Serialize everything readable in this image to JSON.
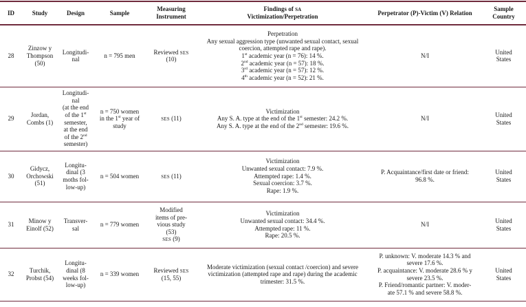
{
  "colors": {
    "rule": "#6f2a3c",
    "text": "#1a1a1a"
  },
  "table": {
    "columns": [
      {
        "label": "ID"
      },
      {
        "label": "Study"
      },
      {
        "label": "Design"
      },
      {
        "label": "Sample"
      },
      {
        "label": "Measuring\nInstrument"
      },
      {
        "label": "Findings of [SA]\nVictimization/Perpetration"
      },
      {
        "label": "Perpetrator (P)-Victim (V) Relation"
      },
      {
        "label": "Sample\nCountry"
      }
    ],
    "rows": [
      {
        "id": "28",
        "study": "Zinzow y\nThompson\n(50)",
        "design": "Longitudi-\nnal",
        "sample": "n = 795 men",
        "instrument": "Reviewed [SES]\n(10)",
        "findings": "Perpetration\nAny sexual aggression type (unwanted sexual contact, sexual coercion, attempted rape and rape).\n1{st} academic year (n = 76): 14 %.\n2{nd} academic year (n = 57): 18 %.\n3{rd} academic year (n = 57): 12 %.\n4{th} academic year (n = 52): 21 %.",
        "relation": "N/I",
        "country": "United\nStates"
      },
      {
        "id": "29",
        "study": "Jordan,\nCombs (1)",
        "design": "Longitudi-\nnal\n(at the end\nof the 1{st}\nsemester,\nat the end\nof the 2{nd}\nsemester)",
        "sample": "n = 750 women\nin the 1{st} year of\nstudy",
        "instrument": "[SES] (11)",
        "findings": "Victimization\nAny S. A. type at the end of the 1{st} semester: 24.2 %.\nAny S. A. type at the end of the 2{nd} semester: 19.6 %.",
        "relation": "N/I",
        "country": "United\nStates"
      },
      {
        "id": "30",
        "study": "Gidycz,\nOrchowski\n(51)",
        "design": "Longitu-\ndinal (3\nmoths fol-\nlow-up)",
        "sample": "n = 504 women",
        "instrument": "[SES] (11)",
        "findings": "Victimization\nUnwanted sexual contact: 7.9 %.\nAttempted rape: 1.4 %.\nSexual coercion: 3.7 %.\nRape: 1.9 %.",
        "relation": "P. Acquaintance/first date or friend:\n96.8 %.",
        "country": "United\nStates"
      },
      {
        "id": "31",
        "study": "Minow y\nEinolf (52)",
        "design": "Transver-\nsal",
        "sample": "n = 779 women",
        "instrument": "Modified\nitems of pre-\nvious study\n(53)\n[SES] (9)",
        "findings": "Victimization\nUnwanted sexual contact: 34.4 %.\nAttempted rape: 11 %.\nRape: 20.5 %.",
        "relation": "N/I",
        "country": "United\nStates"
      },
      {
        "id": "32",
        "study": "Turchik,\nProbst (54)",
        "design": "Longitu-\ndinal (8\nweeks fol-\nlow-up)",
        "sample": "n = 339 women",
        "instrument": "Reviewed [SES]\n(15, 55)",
        "findings": "Moderate victimization (sexual contact /coercion) and severe victimization (attempted rape and rape) during the academic trimester: 31.5 %.",
        "relation": "P. unknown: V. moderate 14.3 % and\nsevere 17.6 %.\nP. acquaintance: V. moderate 28.6 % y\nsevere 23.5 %.\nP. Friend/romantic partner: V. moder-\nate 57.1 % and severe 58.8 %.",
        "country": "United\nStates"
      }
    ]
  }
}
